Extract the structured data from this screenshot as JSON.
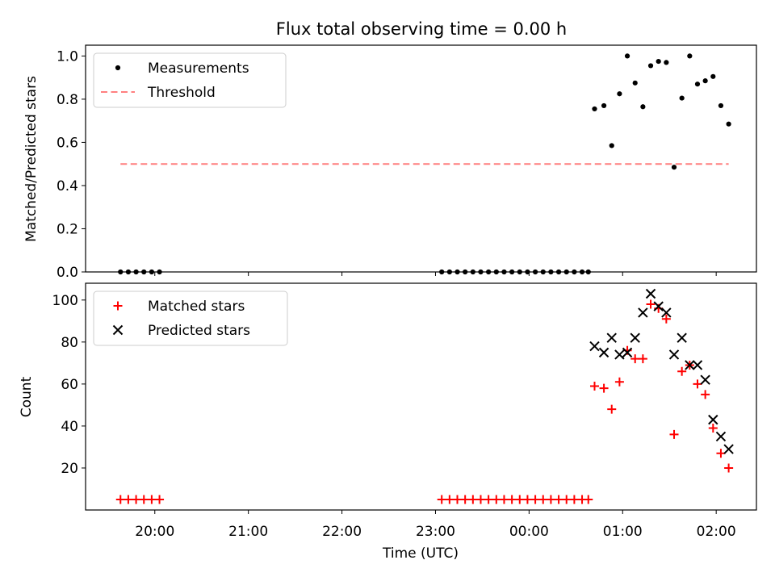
{
  "chart_data": {
    "title": "Flux total observing time = 0.00 h",
    "xlabel": "Time (UTC)",
    "x_ticks": [
      "20:00",
      "21:00",
      "22:00",
      "23:00",
      "00:00",
      "01:00",
      "02:00"
    ],
    "x_tick_hours": [
      20,
      21,
      22,
      23,
      24,
      25,
      26
    ],
    "x_range_hours": [
      19.26,
      26.43
    ],
    "panels": [
      {
        "type": "scatter",
        "ylabel": "Matched/Predicted stars",
        "ylim": [
          0.0,
          1.05
        ],
        "y_ticks": [
          0.0,
          0.2,
          0.4,
          0.6,
          0.8,
          1.0
        ],
        "y_tick_labels": [
          "0.0",
          "0.2",
          "0.4",
          "0.6",
          "0.8",
          "1.0"
        ],
        "legend_position": "top-left",
        "series": [
          {
            "name": "Measurements",
            "marker": "dot",
            "color": "#000000",
            "x": [
              "19:38",
              "19:43",
              "19:48",
              "19:53",
              "19:58",
              "20:03",
              "23:04",
              "23:09",
              "23:14",
              "23:19",
              "23:24",
              "23:29",
              "23:34",
              "23:39",
              "23:44",
              "23:49",
              "23:54",
              "23:59",
              "00:04",
              "00:09",
              "00:14",
              "00:19",
              "00:24",
              "00:29",
              "00:34",
              "00:38",
              "00:42",
              "00:48",
              "00:53",
              "00:58",
              "01:03",
              "01:08",
              "01:13",
              "01:18",
              "01:23",
              "01:28",
              "01:33",
              "01:38",
              "01:43",
              "01:48",
              "01:53",
              "01:58",
              "02:03",
              "02:08"
            ],
            "y": [
              0.0,
              0.0,
              0.0,
              0.0,
              0.0,
              0.0,
              0.0,
              0.0,
              0.0,
              0.0,
              0.0,
              0.0,
              0.0,
              0.0,
              0.0,
              0.0,
              0.0,
              0.0,
              0.0,
              0.0,
              0.0,
              0.0,
              0.0,
              0.0,
              0.0,
              0.0,
              0.755,
              0.77,
              0.585,
              0.825,
              1.0,
              0.875,
              0.765,
              0.955,
              0.975,
              0.97,
              0.485,
              0.805,
              1.0,
              0.87,
              0.885,
              0.905,
              0.77,
              0.685
            ]
          },
          {
            "name": "Threshold",
            "marker": "dashed-line",
            "color": "#ff7f7f",
            "x": [
              "19:38",
              "02:08"
            ],
            "y": [
              0.5,
              0.5
            ]
          }
        ]
      },
      {
        "type": "scatter",
        "ylabel": "Count",
        "ylim": [
          0,
          108
        ],
        "y_ticks": [
          20,
          40,
          60,
          80,
          100
        ],
        "y_tick_labels": [
          "20",
          "40",
          "60",
          "80",
          "100"
        ],
        "legend_position": "top-left",
        "series": [
          {
            "name": "Matched stars",
            "marker": "plus",
            "color": "#ff0000",
            "x": [
              "19:38",
              "19:43",
              "19:48",
              "19:53",
              "19:58",
              "20:03",
              "23:04",
              "23:09",
              "23:14",
              "23:19",
              "23:24",
              "23:29",
              "23:34",
              "23:39",
              "23:44",
              "23:49",
              "23:54",
              "23:59",
              "00:04",
              "00:09",
              "00:14",
              "00:19",
              "00:24",
              "00:29",
              "00:34",
              "00:38",
              "00:42",
              "00:48",
              "00:53",
              "00:58",
              "01:03",
              "01:08",
              "01:13",
              "01:18",
              "01:23",
              "01:28",
              "01:33",
              "01:38",
              "01:43",
              "01:48",
              "01:53",
              "01:58",
              "02:03",
              "02:08"
            ],
            "y": [
              5,
              5,
              5,
              5,
              5,
              5,
              5,
              5,
              5,
              5,
              5,
              5,
              5,
              5,
              5,
              5,
              5,
              5,
              5,
              5,
              5,
              5,
              5,
              5,
              5,
              5,
              59,
              58,
              48,
              61,
              76,
              72,
              72,
              98,
              96,
              91,
              36,
              66,
              69,
              60,
              55,
              39,
              27,
              20
            ]
          },
          {
            "name": "Predicted stars",
            "marker": "x",
            "color": "#000000",
            "x": [
              "00:42",
              "00:48",
              "00:53",
              "00:58",
              "01:03",
              "01:08",
              "01:13",
              "01:18",
              "01:23",
              "01:28",
              "01:33",
              "01:38",
              "01:43",
              "01:48",
              "01:53",
              "01:58",
              "02:03",
              "02:08"
            ],
            "y": [
              78,
              75,
              82,
              74,
              75,
              82,
              94,
              103,
              97,
              94,
              74,
              82,
              69,
              69,
              62,
              43,
              35,
              29
            ]
          }
        ]
      }
    ]
  }
}
